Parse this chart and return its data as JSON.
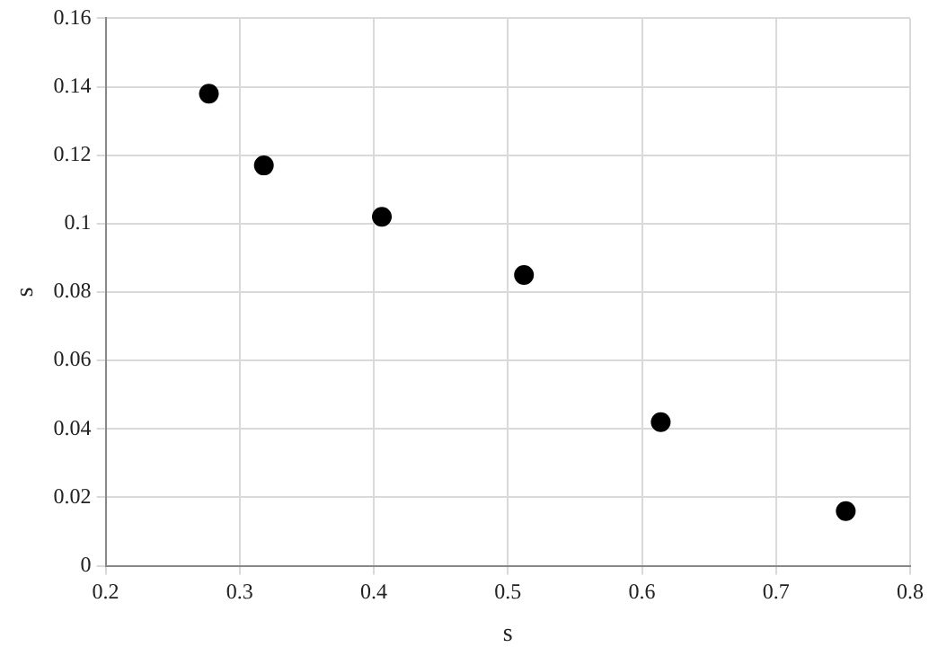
{
  "chart_data": {
    "type": "scatter",
    "xlabel": "s",
    "ylabel": "s",
    "x": [
      0.277,
      0.318,
      0.406,
      0.512,
      0.614,
      0.752
    ],
    "values": [
      0.138,
      0.117,
      0.102,
      0.085,
      0.042,
      0.016
    ],
    "color": "#000000",
    "marker": "circle",
    "xlim": [
      0.2,
      0.8
    ],
    "xticks": [
      0.2,
      0.3,
      0.4,
      0.5,
      0.6,
      0.7,
      0.8
    ],
    "ylim": [
      0,
      0.16
    ],
    "yticks": [
      0,
      0.02,
      0.04,
      0.06,
      0.08,
      0.1,
      0.12,
      0.14,
      0.16
    ],
    "grid": true,
    "legend": false
  }
}
